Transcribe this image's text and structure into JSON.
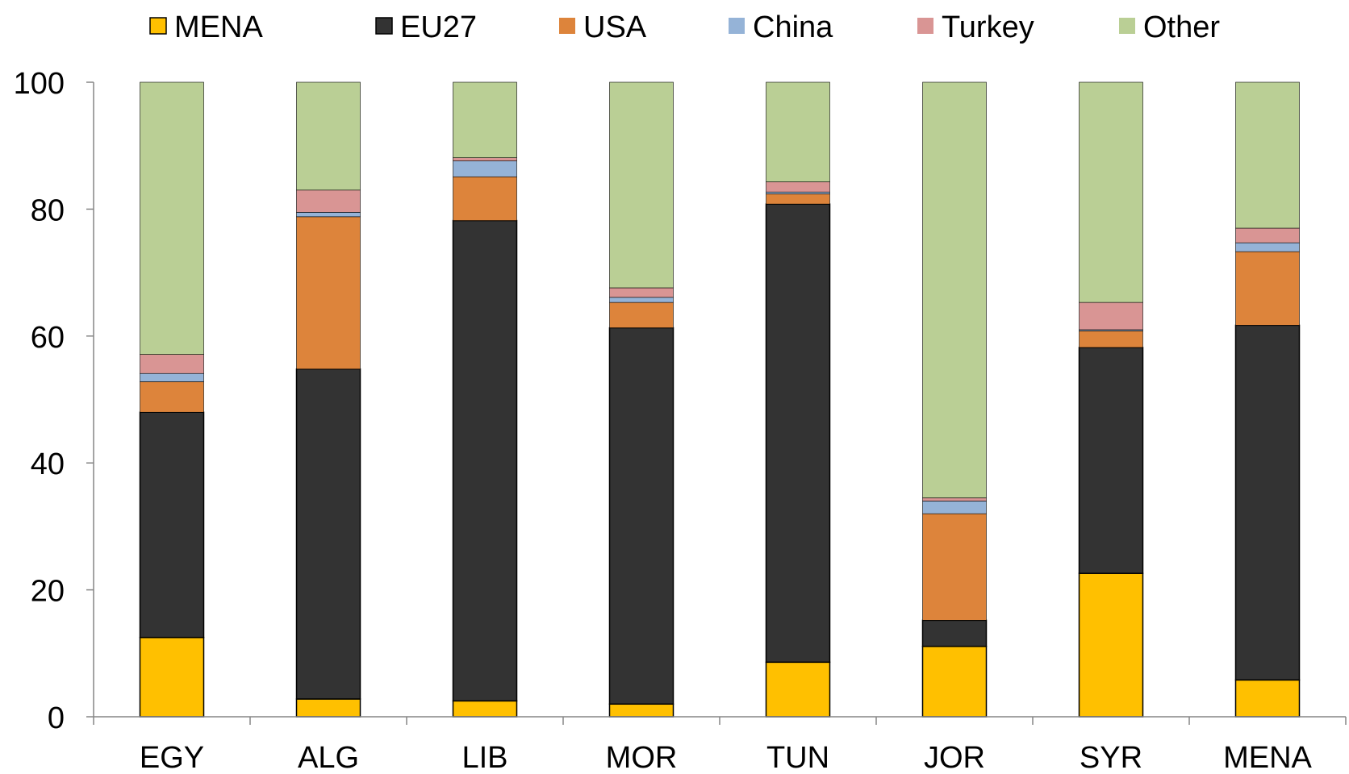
{
  "chart_data": {
    "type": "bar",
    "stacked": true,
    "title": "",
    "xlabel": "",
    "ylabel": "",
    "ylim": [
      0,
      100
    ],
    "yticks": [
      "0",
      "20",
      "40",
      "60",
      "80",
      "100"
    ],
    "grid": false,
    "legend_position": "top",
    "categories": [
      "EGY",
      "ALG",
      "LIB",
      "MOR",
      "TUN",
      "JOR",
      "SYR",
      "MENA"
    ],
    "series": [
      {
        "name": "MENA",
        "color": "#FFC000",
        "values": [
          12.5,
          2.8,
          2.5,
          2.0,
          8.6,
          11.1,
          22.6,
          5.8
        ]
      },
      {
        "name": "EU27",
        "color": "#333333",
        "values": [
          35.5,
          52.0,
          75.7,
          59.3,
          72.2,
          4.1,
          35.6,
          55.9
        ]
      },
      {
        "name": "USA",
        "color": "#DD843B",
        "values": [
          4.8,
          24.0,
          6.9,
          4.0,
          1.6,
          16.8,
          2.6,
          11.6
        ]
      },
      {
        "name": "China",
        "color": "#95B3D7",
        "values": [
          1.3,
          0.7,
          2.5,
          0.8,
          0.3,
          2.0,
          0.2,
          1.4
        ]
      },
      {
        "name": "Turkey",
        "color": "#D99594",
        "values": [
          3.0,
          3.5,
          0.5,
          1.5,
          1.6,
          0.5,
          4.3,
          2.3
        ]
      },
      {
        "name": "Other",
        "color": "#BACF95",
        "values": [
          42.9,
          17.0,
          11.9,
          32.4,
          15.7,
          65.5,
          34.7,
          23.0
        ]
      }
    ]
  }
}
